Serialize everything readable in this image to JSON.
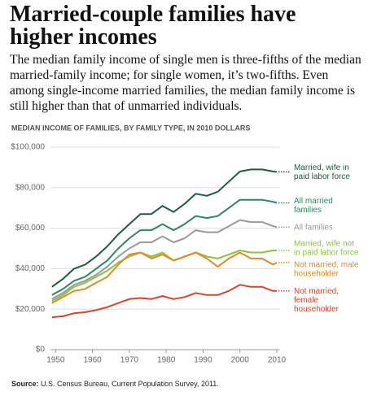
{
  "chart_data": {
    "type": "line",
    "title": "Married-couple families have higher incomes",
    "subtitle": "The median family income of single men is three-fifths of the median married-family income; for single women, it’s two-fifths. Even among single-income married families, the median family income is still higher than that of unmarried individuals.",
    "axis_title": "MEDIAN INCOME OF FAMILIES, BY FAMILY TYPE, IN 2010 DOLLARS",
    "source_label": "Source:",
    "source": "U.S. Census Bureau, Current Population Survey, 2011.",
    "x": [
      1949,
      1952,
      1955,
      1958,
      1961,
      1964,
      1967,
      1970,
      1973,
      1976,
      1979,
      1982,
      1985,
      1988,
      1991,
      1994,
      1997,
      2000,
      2003,
      2006,
      2009,
      2010
    ],
    "xlim": [
      1948.6,
      2011
    ],
    "xticks": [
      1950,
      1960,
      1970,
      1980,
      1990,
      2000,
      2010
    ],
    "ylim": [
      0,
      100000
    ],
    "yticks": [
      {
        "value": 0,
        "label": "$0"
      },
      {
        "value": 20000,
        "label": "$20,000"
      },
      {
        "value": 40000,
        "label": "$40,000"
      },
      {
        "value": 60000,
        "label": "$60,000"
      },
      {
        "value": 80000,
        "label": "$80,000"
      },
      {
        "value": 100000,
        "label": "$100,000"
      }
    ],
    "grid": true,
    "series": [
      {
        "name": "Married, wife in\npaid labor force",
        "color": "#1b5e3b",
        "values": [
          31000,
          35000,
          40000,
          42000,
          46000,
          51000,
          57000,
          62000,
          67000,
          67000,
          71000,
          68000,
          72000,
          77000,
          76000,
          78000,
          83000,
          88000,
          89000,
          89000,
          88000,
          87800
        ]
      },
      {
        "name": "All married\nfamilies",
        "color": "#2a8a5e",
        "values": [
          27000,
          30000,
          34000,
          36000,
          40000,
          44000,
          50000,
          55000,
          59000,
          59000,
          62000,
          59000,
          62000,
          66000,
          65000,
          66000,
          70000,
          74000,
          74000,
          74000,
          73000,
          72500
        ]
      },
      {
        "name": "All families",
        "color": "#9a9a9a",
        "values": [
          25000,
          28000,
          32000,
          34000,
          37000,
          41000,
          46000,
          50000,
          53000,
          53000,
          56000,
          53000,
          55000,
          59000,
          58000,
          58000,
          61000,
          64000,
          63000,
          63000,
          61000,
          60500
        ]
      },
      {
        "name": "Married, wife not\nin paid labor force",
        "color": "#8cc63f",
        "values": [
          24000,
          27000,
          31000,
          33000,
          36000,
          39000,
          43000,
          46000,
          48000,
          46000,
          48000,
          44000,
          46000,
          48000,
          46000,
          45000,
          47000,
          49000,
          48000,
          48000,
          49000,
          49000
        ]
      },
      {
        "name": "Not married, male\nhouseholder",
        "color": "#e08a2a",
        "values": [
          23000,
          26000,
          29000,
          30000,
          33000,
          36000,
          42000,
          47000,
          48000,
          45000,
          47000,
          44000,
          46000,
          48000,
          45000,
          41000,
          45000,
          48000,
          45000,
          45000,
          42000,
          43000
        ]
      },
      {
        "name": "Not married,\nfemale\nhouseholder",
        "color": "#d9452b",
        "values": [
          16000,
          16500,
          18000,
          18500,
          19500,
          21000,
          23000,
          25000,
          25500,
          25000,
          26500,
          25000,
          26000,
          28000,
          27000,
          27000,
          29000,
          32000,
          31000,
          31000,
          29000,
          29000
        ]
      }
    ]
  }
}
